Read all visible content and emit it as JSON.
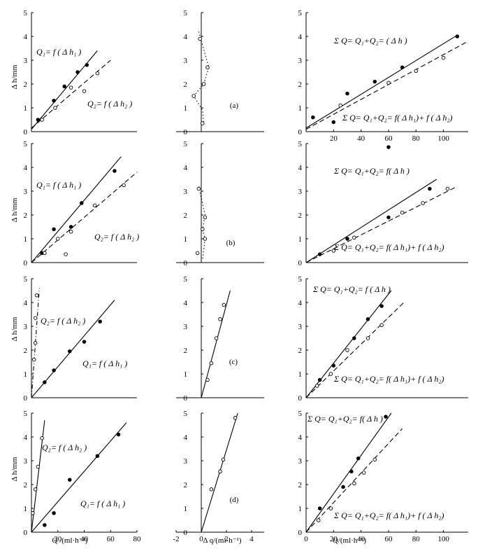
{
  "figure": {
    "xlabel_left": "Q /(ml·h⁻¹)",
    "xlabel_mid": "Δ q/(ml·h⁻¹)",
    "xlabel_right": "Q/(ml·h⁻¹)",
    "ylabel": "Δ h/mm"
  },
  "chart_data": [
    {
      "id": "a-left",
      "type": "scatter",
      "ylabel": "Δ h/mm",
      "ylim": [
        0,
        5
      ],
      "yticks": [
        "0",
        "1",
        "2",
        "3",
        "4",
        "5"
      ],
      "series": [
        {
          "name": "Q₁= f ( Δ h₁ )",
          "marker": "filled",
          "line": "solid",
          "points": [
            [
              5,
              0.5
            ],
            [
              17,
              1.3
            ],
            [
              25,
              1.9
            ],
            [
              35,
              2.5
            ],
            [
              42,
              2.8
            ]
          ],
          "fit": [
            [
              0,
              0.1
            ],
            [
              50,
              3.4
            ]
          ]
        },
        {
          "name": "Q₂= f ( Δ h₂ )",
          "marker": "open",
          "line": "dashed",
          "points": [
            [
              8,
              0.5
            ],
            [
              18,
              1
            ],
            [
              30,
              1.85
            ],
            [
              40,
              1.7
            ],
            [
              50,
              2.45
            ]
          ],
          "fit": [
            [
              0,
              0.15
            ],
            [
              60,
              3
            ]
          ]
        }
      ]
    },
    {
      "id": "a-mid",
      "type": "scatter",
      "label": "(a)",
      "ylim": [
        0,
        5
      ],
      "yticks": [
        "0",
        "1",
        "2",
        "3",
        "4",
        "5"
      ],
      "series": [
        {
          "marker": "open",
          "line": "dotted",
          "points": [
            [
              -0.1,
              3.9
            ],
            [
              0.5,
              2.7
            ],
            [
              0.2,
              2.0
            ],
            [
              -0.6,
              1.5
            ],
            [
              0.1,
              0.35
            ]
          ],
          "fit": [
            [
              -0.2,
              4.2
            ],
            [
              0.6,
              2.7
            ],
            [
              0.2,
              2.0
            ],
            [
              -0.6,
              1.5
            ],
            [
              0.1,
              0.9
            ],
            [
              0.2,
              0.3
            ]
          ]
        }
      ]
    },
    {
      "id": "a-right",
      "type": "scatter",
      "ylim": [
        0,
        5
      ],
      "yticks": [
        "0",
        "1",
        "2",
        "3",
        "4",
        "5"
      ],
      "xticks": [
        "20",
        "40",
        "60",
        "80",
        "100"
      ],
      "series": [
        {
          "name": "Σ Q= Q₁+Q₂= ( Δ h )",
          "marker": "filled",
          "line": "solid",
          "points": [
            [
              5,
              0.6
            ],
            [
              20,
              0.4
            ],
            [
              30,
              1.6
            ],
            [
              50,
              2.1
            ],
            [
              70,
              2.7
            ],
            [
              110,
              4.0
            ]
          ],
          "fit": [
            [
              0,
              0.15
            ],
            [
              110,
              4.05
            ]
          ]
        },
        {
          "name": "Σ Q= Q₁+Q₂= f( Δ h₁)+ f ( Δ h₂)",
          "marker": "open",
          "line": "dashed",
          "points": [
            [
              25,
              1.1
            ],
            [
              60,
              2.05
            ],
            [
              80,
              2.55
            ],
            [
              100,
              3.1
            ]
          ],
          "fit": [
            [
              0,
              0.1
            ],
            [
              118,
              3.8
            ]
          ]
        }
      ]
    },
    {
      "id": "b-left",
      "type": "scatter",
      "ylabel": "Δ h/mm",
      "ylim": [
        0,
        5
      ],
      "yticks": [
        "0",
        "1",
        "2",
        "3",
        "4",
        "5"
      ],
      "series": [
        {
          "name": "Q₁= f ( Δ h₁ )",
          "marker": "filled",
          "line": "solid",
          "points": [
            [
              8,
              0.4
            ],
            [
              17,
              1.4
            ],
            [
              30,
              1.5
            ],
            [
              38,
              2.5
            ],
            [
              63,
              3.85
            ]
          ],
          "fit": [
            [
              0,
              0
            ],
            [
              68,
              4.45
            ]
          ]
        },
        {
          "name": "Q₂= f ( Δ h₂ )",
          "marker": "open",
          "line": "dashed",
          "points": [
            [
              10,
              0.4
            ],
            [
              20,
              1.0
            ],
            [
              26,
              0.35
            ],
            [
              30,
              1.3
            ],
            [
              48,
              2.4
            ],
            [
              70,
              3.25
            ]
          ],
          "fit": [
            [
              0,
              0
            ],
            [
              80,
              3.8
            ]
          ]
        }
      ]
    },
    {
      "id": "b-mid",
      "type": "scatter",
      "label": "(b)",
      "ylim": [
        0,
        5
      ],
      "yticks": [
        "0",
        "1",
        "2",
        "3",
        "4",
        "5"
      ],
      "series": [
        {
          "marker": "open",
          "line": "dotted",
          "points": [
            [
              -0.2,
              3.1
            ],
            [
              0.3,
              1.9
            ],
            [
              0.1,
              1.4
            ],
            [
              0.3,
              1.0
            ],
            [
              -0.3,
              0.4
            ]
          ],
          "fit": [
            [
              -0.2,
              3.2
            ],
            [
              0.3,
              2.0
            ],
            [
              0.1,
              1.4
            ],
            [
              0.3,
              1.0
            ],
            [
              0.1,
              0.1
            ]
          ]
        }
      ]
    },
    {
      "id": "b-right",
      "type": "scatter",
      "ylim": [
        0,
        5
      ],
      "yticks": [
        "0",
        "1",
        "2",
        "3",
        "4",
        "5"
      ],
      "series": [
        {
          "name": "Σ Q= Q₁+Q₂= f( Δ h )",
          "marker": "filled",
          "line": "solid",
          "points": [
            [
              10,
              0.35
            ],
            [
              30,
              1.0
            ],
            [
              60,
              1.9
            ],
            [
              60,
              4.85
            ],
            [
              90,
              3.1
            ]
          ],
          "fit": [
            [
              0,
              0
            ],
            [
              95,
              3.5
            ]
          ]
        },
        {
          "name": "Σ Q= Q₁+Q₂= f( Δ h₁)+ f ( Δ h₂)",
          "marker": "open",
          "line": "dashed",
          "points": [
            [
              20,
              0.5
            ],
            [
              35,
              1.05
            ],
            [
              70,
              2.1
            ],
            [
              85,
              2.5
            ],
            [
              103,
              3.1
            ]
          ],
          "fit": [
            [
              0,
              0
            ],
            [
              110,
              3.2
            ]
          ]
        }
      ]
    },
    {
      "id": "c-left",
      "type": "scatter",
      "ylabel": "Δ h/mm",
      "ylim": [
        0,
        5
      ],
      "yticks": [
        "0",
        "1",
        "2",
        "3",
        "4",
        "5"
      ],
      "series": [
        {
          "name": "Q₂= f ( Δ h₂ )",
          "marker": "open",
          "line": "dash-dot",
          "points": [
            [
              2,
              1.6
            ],
            [
              3,
              2.3
            ],
            [
              3,
              3.35
            ],
            [
              4,
              4.3
            ]
          ],
          "fit": [
            [
              0,
              0
            ],
            [
              6,
              4.6
            ]
          ]
        },
        {
          "name": "Q₁= f ( Δ h₁ )",
          "marker": "filled",
          "line": "solid",
          "points": [
            [
              10,
              0.65
            ],
            [
              17,
              1.15
            ],
            [
              29,
              1.95
            ],
            [
              40,
              2.35
            ],
            [
              52,
              3.2
            ]
          ],
          "fit": [
            [
              0,
              0
            ],
            [
              63,
              4.1
            ]
          ]
        }
      ]
    },
    {
      "id": "c-mid",
      "type": "scatter",
      "label": "(c)",
      "ylim": [
        0,
        5
      ],
      "yticks": [
        "0",
        "1",
        "2",
        "3",
        "4",
        "5"
      ],
      "series": [
        {
          "marker": "open",
          "line": "solid",
          "points": [
            [
              0.5,
              0.75
            ],
            [
              0.8,
              1.45
            ],
            [
              1.2,
              2.5
            ],
            [
              1.5,
              3.3
            ],
            [
              1.8,
              3.9
            ]
          ],
          "fit": [
            [
              0,
              0
            ],
            [
              2.3,
              4.5
            ]
          ]
        }
      ]
    },
    {
      "id": "c-right",
      "type": "scatter",
      "ylim": [
        0,
        5
      ],
      "yticks": [
        "0",
        "1",
        "2",
        "3",
        "4",
        "5"
      ],
      "series": [
        {
          "name": "Σ Q= Q₁+Q₂= f ( Δ h )",
          "marker": "filled",
          "line": "solid",
          "points": [
            [
              10,
              0.75
            ],
            [
              20,
              1.35
            ],
            [
              35,
              2.5
            ],
            [
              45,
              3.3
            ],
            [
              55,
              3.85
            ]
          ],
          "fit": [
            [
              0,
              0
            ],
            [
              62,
              4.5
            ]
          ]
        },
        {
          "name": "Σ Q= Q₁+Q₂= f( Δ h₁)+ f ( Δ h₂)",
          "marker": "open",
          "line": "dashed",
          "points": [
            [
              8,
              0.5
            ],
            [
              18,
              1.0
            ],
            [
              30,
              2.0
            ],
            [
              45,
              2.5
            ],
            [
              55,
              3.05
            ]
          ],
          "fit": [
            [
              0,
              0
            ],
            [
              72,
              4.05
            ]
          ]
        }
      ]
    },
    {
      "id": "d-left",
      "type": "scatter",
      "ylabel": "Δ h/mm",
      "xlabel": "Q /(ml·h⁻¹)",
      "ylim": [
        0,
        5
      ],
      "yticks": [
        "0",
        "1",
        "2",
        "3",
        "4",
        "5"
      ],
      "xticks": [
        "20",
        "40",
        "60",
        "80"
      ],
      "series": [
        {
          "name": "Q₂= f ( Δ h₂ )",
          "marker": "open",
          "line": "solid",
          "points": [
            [
              1,
              0.8
            ],
            [
              3,
              1.8
            ],
            [
              5,
              2.75
            ],
            [
              8,
              3.95
            ]
          ],
          "fit": [
            [
              0,
              0
            ],
            [
              10,
              4.7
            ]
          ]
        },
        {
          "name": "Q₁= f ( Δ h₁ )",
          "marker": "filled",
          "line": "solid",
          "points": [
            [
              10,
              0.3
            ],
            [
              17,
              0.8
            ],
            [
              29,
              2.2
            ],
            [
              50,
              3.2
            ],
            [
              66,
              4.1
            ]
          ],
          "fit": [
            [
              0,
              0
            ],
            [
              72,
              4.6
            ]
          ]
        }
      ]
    },
    {
      "id": "d-mid",
      "type": "scatter",
      "label": "(d)",
      "xlabel": "Δ q/(ml·h⁻¹)",
      "ylim": [
        0,
        5
      ],
      "yticks": [
        "0",
        "1",
        "2",
        "3",
        "4",
        "5"
      ],
      "xticks": [
        "-2",
        "0",
        "2",
        "4"
      ],
      "series": [
        {
          "marker": "open",
          "line": "solid",
          "points": [
            [
              0.8,
              1.8
            ],
            [
              1.5,
              2.55
            ],
            [
              1.75,
              3.05
            ],
            [
              2.7,
              4.8
            ]
          ],
          "fit": [
            [
              0,
              0
            ],
            [
              2.9,
              5.0
            ]
          ]
        }
      ]
    },
    {
      "id": "d-right",
      "type": "scatter",
      "xlabel": "Q/(ml·h⁻¹)",
      "ylim": [
        0,
        5
      ],
      "yticks": [
        "0",
        "1",
        "2",
        "3",
        "4",
        "5"
      ],
      "xticks": [
        "0",
        "20",
        "40",
        "60",
        "80",
        "100"
      ],
      "series": [
        {
          "name": "Σ Q= Q₁+Q₂= f( Δ h )",
          "marker": "filled",
          "line": "solid",
          "points": [
            [
              10,
              1.0
            ],
            [
              27,
              1.9
            ],
            [
              33,
              2.55
            ],
            [
              38,
              3.1
            ],
            [
              58,
              4.85
            ]
          ],
          "fit": [
            [
              0,
              0
            ],
            [
              62,
              5.0
            ]
          ]
        },
        {
          "name": "Σ Q= Q₁+Q₂= f( Δ h₁)+ f ( Δ h₂)",
          "marker": "open",
          "line": "dashed",
          "points": [
            [
              9,
              0.5
            ],
            [
              18,
              1.0
            ],
            [
              35,
              2.05
            ],
            [
              42,
              2.5
            ],
            [
              50,
              3.05
            ]
          ],
          "fit": [
            [
              0,
              0
            ],
            [
              70,
              4.35
            ]
          ]
        }
      ]
    }
  ]
}
